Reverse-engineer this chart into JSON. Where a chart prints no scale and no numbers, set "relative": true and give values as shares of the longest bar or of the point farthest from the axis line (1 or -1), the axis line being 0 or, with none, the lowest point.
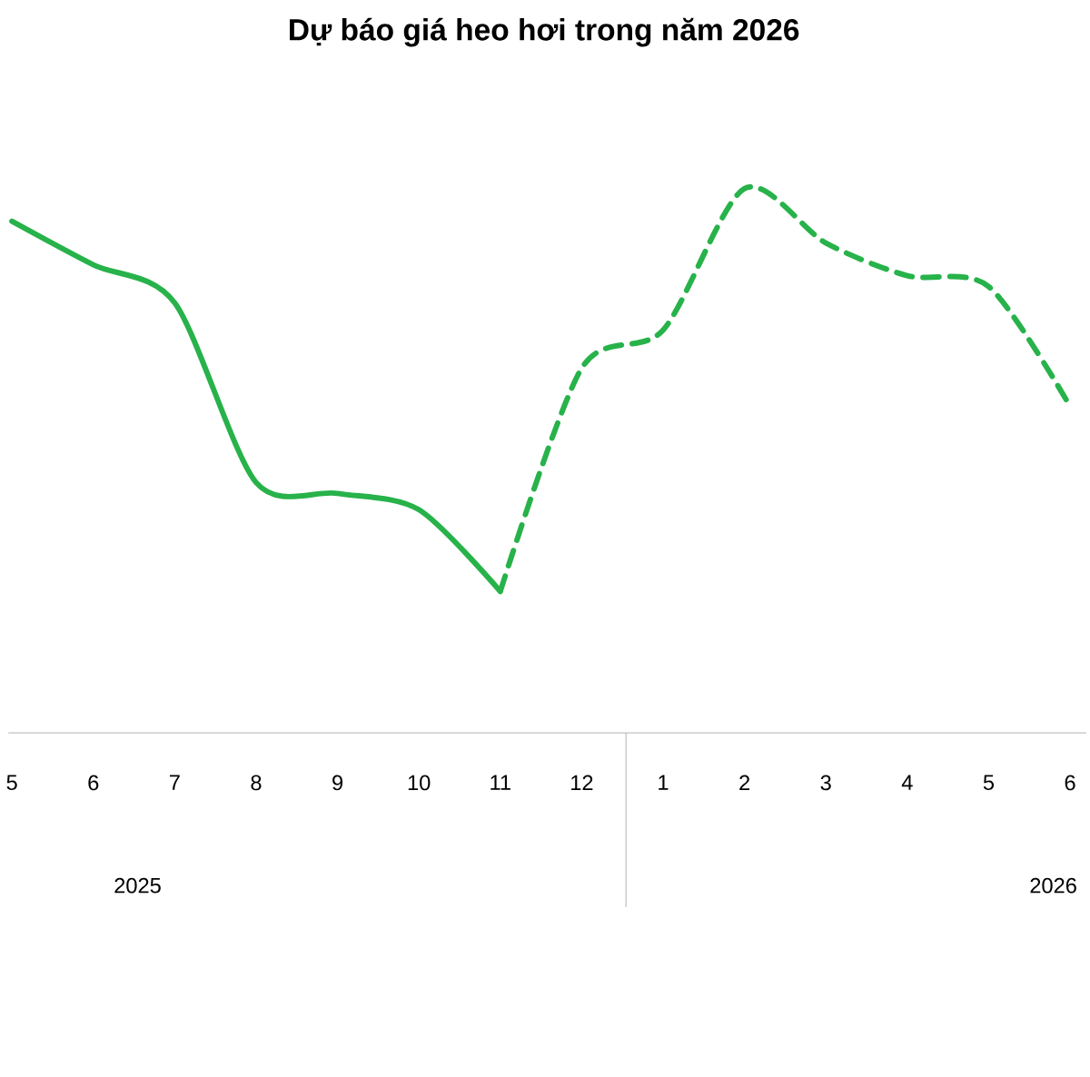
{
  "chart_data": {
    "type": "line",
    "title": "Dự báo giá heo hơi trong năm 2026",
    "relative": true,
    "categories": [
      "5",
      "6",
      "7",
      "8",
      "9",
      "10",
      "11",
      "12",
      "1",
      "2",
      "3",
      "4",
      "5",
      "6"
    ],
    "series": [
      {
        "color": "#27b24a",
        "line_style": "solid",
        "values": [
          0.94,
          0.86,
          0.79,
          0.46,
          0.44,
          0.41,
          0.26,
          null,
          null,
          null,
          null,
          null,
          null,
          null
        ]
      },
      {
        "color": "#27b24a",
        "line_style": "dashed",
        "values": [
          null,
          null,
          null,
          null,
          null,
          null,
          0.26,
          0.67,
          0.74,
          1,
          0.9,
          0.84,
          0.82,
          0.6
        ]
      }
    ],
    "annotations": [
      "2025",
      "2026"
    ],
    "marker": "none"
  }
}
